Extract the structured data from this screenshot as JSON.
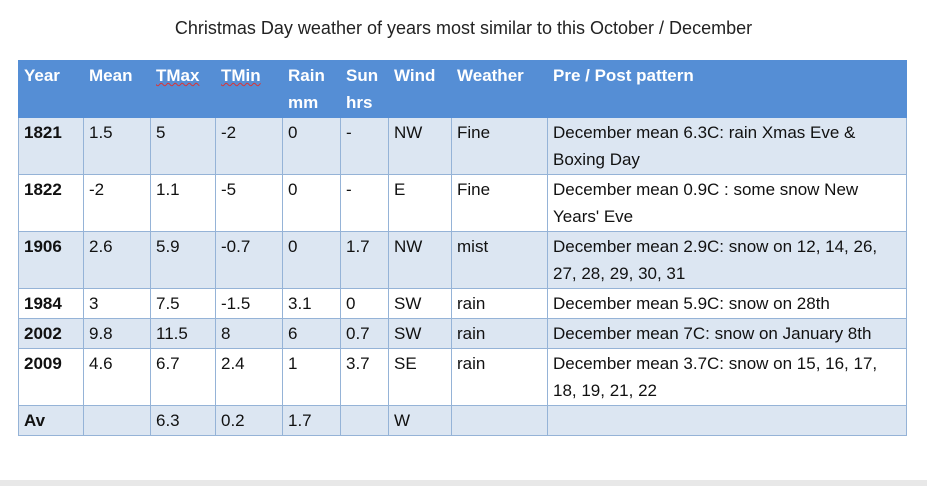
{
  "title": "Christmas Day weather of years most similar to this October / December",
  "table": {
    "header": [
      "Year",
      "Mean",
      "TMax",
      "TMin",
      "Rain mm",
      "Sun hrs",
      "Wind",
      "Weather",
      "Pre / Post pattern"
    ],
    "rows": [
      [
        "1821",
        "1.5",
        "5",
        "-2",
        "0",
        "-",
        "NW",
        "Fine",
        "December mean 6.3C: rain Xmas Eve & Boxing Day"
      ],
      [
        "1822",
        "-2",
        "1.1",
        "-5",
        "0",
        "-",
        "E",
        "Fine",
        "December mean 0.9C : some snow New Years' Eve"
      ],
      [
        "1906",
        "2.6",
        "5.9",
        "-0.7",
        "0",
        "1.7",
        "NW",
        "mist",
        "December mean 2.9C: snow on 12, 14, 26, 27, 28, 29, 30, 31"
      ],
      [
        "1984",
        "3",
        "7.5",
        "-1.5",
        "3.1",
        "0",
        "SW",
        "rain",
        "December mean 5.9C: snow on 28th"
      ],
      [
        "2002",
        "9.8",
        "11.5",
        "8",
        "6",
        "0.7",
        "SW",
        "rain",
        "December mean 7C: snow on January 8th"
      ],
      [
        "2009",
        "4.6",
        "6.7",
        "2.4",
        "1",
        "3.7",
        "SE",
        "rain",
        "December mean 3.7C: snow on 15, 16, 17, 18, 19, 21, 22"
      ],
      [
        "Av",
        "",
        "6.3",
        "0.2",
        "1.7",
        "",
        "W",
        "",
        ""
      ]
    ]
  }
}
